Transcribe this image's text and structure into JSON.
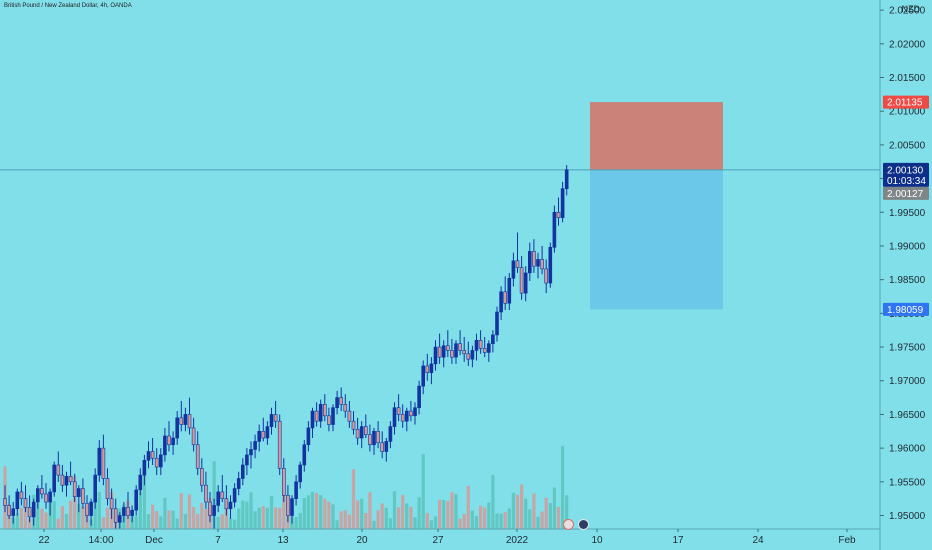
{
  "header": {
    "title": "British Pound / New Zealand Dollar, 4h, OANDA",
    "currency": "NZD"
  },
  "price_axis": {
    "ticks": [
      "2.02500",
      "2.02000",
      "2.01500",
      "2.01000",
      "2.00500",
      "2.00000",
      "1.99500",
      "1.99000",
      "1.98500",
      "1.98000",
      "1.97500",
      "1.97000",
      "1.96500",
      "1.96000",
      "1.95500",
      "1.95000"
    ],
    "labels": {
      "stop": {
        "text": "2.01135",
        "value": 2.01135,
        "color": "#f04a45"
      },
      "last": {
        "text": "2.00130",
        "value": 2.0013,
        "color": "#0d2f8a"
      },
      "countdown": {
        "text": "01:03:34"
      },
      "prev": {
        "text": "2.00127",
        "value": 2.00127,
        "color": "#7f8688"
      },
      "target": {
        "text": "1.98059",
        "value": 1.98059,
        "color": "#2f74f2"
      }
    }
  },
  "time_axis": {
    "ticks": [
      "22",
      "14:00",
      "Dec",
      "7",
      "13",
      "20",
      "27",
      "2022",
      "10",
      "17",
      "24",
      "Feb"
    ]
  },
  "position": {
    "type": "short",
    "entry": 2.0013,
    "stop": 2.01135,
    "target": 1.98059,
    "colors": {
      "risk": "#ca8279",
      "reward": "#6cc8e8"
    }
  },
  "colors": {
    "background": "#80dfe9",
    "candle": "#1233a0",
    "volume_up": "#5ac3bc",
    "volume_down": "#d69a98",
    "price_line": "#4f9fb8"
  },
  "chart_data": {
    "type": "candlestick",
    "title": "British Pound / New Zealand Dollar, 4h, OANDA",
    "symbol": "GBPNZD",
    "interval": "4h",
    "ylim": [
      1.948,
      2.0265
    ],
    "candles_ohlc": [
      [
        1.9525,
        1.9545,
        1.9505,
        1.9515
      ],
      [
        1.9515,
        1.953,
        1.9495,
        1.95
      ],
      [
        1.95,
        1.952,
        1.9488,
        1.951
      ],
      [
        1.951,
        1.954,
        1.95,
        1.9535
      ],
      [
        1.9535,
        1.955,
        1.9515,
        1.9525
      ],
      [
        1.9525,
        1.9545,
        1.9505,
        1.9512
      ],
      [
        1.9512,
        1.953,
        1.949,
        1.9498
      ],
      [
        1.9498,
        1.9525,
        1.9485,
        1.952
      ],
      [
        1.952,
        1.9545,
        1.951,
        1.954
      ],
      [
        1.954,
        1.956,
        1.9525,
        1.9532
      ],
      [
        1.9532,
        1.9548,
        1.951,
        1.952
      ],
      [
        1.952,
        1.954,
        1.95,
        1.9535
      ],
      [
        1.9535,
        1.958,
        1.9528,
        1.9575
      ],
      [
        1.9575,
        1.9595,
        1.955,
        1.956
      ],
      [
        1.956,
        1.9575,
        1.9535,
        1.9545
      ],
      [
        1.9545,
        1.9565,
        1.9528,
        1.9558
      ],
      [
        1.9558,
        1.958,
        1.9545,
        1.955
      ],
      [
        1.955,
        1.9562,
        1.952,
        1.9528
      ],
      [
        1.9528,
        1.9545,
        1.9505,
        1.954
      ],
      [
        1.954,
        1.9555,
        1.951,
        1.9518
      ],
      [
        1.9518,
        1.953,
        1.949,
        1.95
      ],
      [
        1.95,
        1.9525,
        1.9485,
        1.952
      ],
      [
        1.952,
        1.957,
        1.951,
        1.956
      ],
      [
        1.956,
        1.9612,
        1.955,
        1.96
      ],
      [
        1.96,
        1.962,
        1.9545,
        1.9555
      ],
      [
        1.9555,
        1.957,
        1.9515,
        1.9525
      ],
      [
        1.9525,
        1.954,
        1.9495,
        1.951
      ],
      [
        1.951,
        1.9525,
        1.948,
        1.949
      ],
      [
        1.949,
        1.9505,
        1.948,
        1.95
      ],
      [
        1.95,
        1.952,
        1.949,
        1.9512
      ],
      [
        1.9512,
        1.9535,
        1.9495,
        1.95
      ],
      [
        1.95,
        1.9515,
        1.949,
        1.9508
      ],
      [
        1.9508,
        1.9545,
        1.95,
        1.9538
      ],
      [
        1.9538,
        1.957,
        1.953,
        1.956
      ],
      [
        1.956,
        1.959,
        1.9545,
        1.9582
      ],
      [
        1.9582,
        1.961,
        1.957,
        1.9595
      ],
      [
        1.9595,
        1.9615,
        1.9575,
        1.9585
      ],
      [
        1.9585,
        1.96,
        1.956,
        1.9572
      ],
      [
        1.9572,
        1.96,
        1.956,
        1.959
      ],
      [
        1.959,
        1.963,
        1.958,
        1.9618
      ],
      [
        1.9618,
        1.964,
        1.9595,
        1.9605
      ],
      [
        1.9605,
        1.9625,
        1.959,
        1.9615
      ],
      [
        1.9615,
        1.9655,
        1.9605,
        1.9645
      ],
      [
        1.9645,
        1.967,
        1.9625,
        1.9635
      ],
      [
        1.9635,
        1.966,
        1.9625,
        1.965
      ],
      [
        1.965,
        1.9675,
        1.962,
        1.963
      ],
      [
        1.963,
        1.9645,
        1.9595,
        1.9605
      ],
      [
        1.9605,
        1.9625,
        1.956,
        1.957
      ],
      [
        1.957,
        1.9585,
        1.9535,
        1.9545
      ],
      [
        1.9545,
        1.9565,
        1.951,
        1.952
      ],
      [
        1.952,
        1.9535,
        1.949,
        1.95
      ],
      [
        1.95,
        1.9525,
        1.948,
        1.9515
      ],
      [
        1.9515,
        1.9545,
        1.9505,
        1.9535
      ],
      [
        1.9535,
        1.956,
        1.952,
        1.9525
      ],
      [
        1.9525,
        1.9545,
        1.95,
        1.951
      ],
      [
        1.951,
        1.953,
        1.9495,
        1.952
      ],
      [
        1.952,
        1.9548,
        1.9512,
        1.954
      ],
      [
        1.954,
        1.9565,
        1.953,
        1.9555
      ],
      [
        1.9555,
        1.9585,
        1.9545,
        1.9575
      ],
      [
        1.9575,
        1.96,
        1.956,
        1.959
      ],
      [
        1.959,
        1.961,
        1.957,
        1.9598
      ],
      [
        1.9598,
        1.962,
        1.9585,
        1.961
      ],
      [
        1.961,
        1.9635,
        1.9595,
        1.9625
      ],
      [
        1.9625,
        1.9645,
        1.961,
        1.9615
      ],
      [
        1.9615,
        1.964,
        1.9605,
        1.9632
      ],
      [
        1.9632,
        1.966,
        1.962,
        1.965
      ],
      [
        1.965,
        1.967,
        1.963,
        1.964
      ],
      [
        1.964,
        1.965,
        1.956,
        1.957
      ],
      [
        1.957,
        1.9585,
        1.952,
        1.953
      ],
      [
        1.953,
        1.9545,
        1.949,
        1.95
      ],
      [
        1.95,
        1.953,
        1.9488,
        1.9525
      ],
      [
        1.9525,
        1.956,
        1.9515,
        1.955
      ],
      [
        1.955,
        1.958,
        1.954,
        1.9575
      ],
      [
        1.9575,
        1.9612,
        1.9565,
        1.9605
      ],
      [
        1.9605,
        1.964,
        1.9595,
        1.963
      ],
      [
        1.963,
        1.966,
        1.9615,
        1.9655
      ],
      [
        1.9655,
        1.9668,
        1.9632,
        1.964
      ],
      [
        1.964,
        1.9672,
        1.963,
        1.9665
      ],
      [
        1.9665,
        1.968,
        1.964,
        1.9648
      ],
      [
        1.9648,
        1.966,
        1.9625,
        1.9635
      ],
      [
        1.9635,
        1.9665,
        1.9625,
        1.966
      ],
      [
        1.966,
        1.9685,
        1.965,
        1.9675
      ],
      [
        1.9675,
        1.969,
        1.9655,
        1.9665
      ],
      [
        1.9665,
        1.968,
        1.9645,
        1.9655
      ],
      [
        1.9655,
        1.967,
        1.963,
        1.964
      ],
      [
        1.964,
        1.9655,
        1.962,
        1.9628
      ],
      [
        1.9628,
        1.9645,
        1.9605,
        1.9615
      ],
      [
        1.9615,
        1.964,
        1.96,
        1.9632
      ],
      [
        1.9632,
        1.965,
        1.9615,
        1.962
      ],
      [
        1.962,
        1.9635,
        1.9595,
        1.9605
      ],
      [
        1.9605,
        1.963,
        1.959,
        1.9625
      ],
      [
        1.9625,
        1.964,
        1.96,
        1.9608
      ],
      [
        1.9608,
        1.9625,
        1.9585,
        1.9595
      ],
      [
        1.9595,
        1.9615,
        1.958,
        1.961
      ],
      [
        1.961,
        1.964,
        1.96,
        1.9632
      ],
      [
        1.9632,
        1.9668,
        1.962,
        1.966
      ],
      [
        1.966,
        1.968,
        1.964,
        1.965
      ],
      [
        1.965,
        1.9665,
        1.963,
        1.964
      ],
      [
        1.964,
        1.966,
        1.9625,
        1.9655
      ],
      [
        1.9655,
        1.967,
        1.964,
        1.9648
      ],
      [
        1.9648,
        1.9668,
        1.9635,
        1.966
      ],
      [
        1.966,
        1.97,
        1.965,
        1.9692
      ],
      [
        1.9692,
        1.973,
        1.968,
        1.9722
      ],
      [
        1.9722,
        1.974,
        1.97,
        1.9712
      ],
      [
        1.9712,
        1.9735,
        1.9695,
        1.9725
      ],
      [
        1.9725,
        1.976,
        1.9715,
        1.975
      ],
      [
        1.975,
        1.977,
        1.9725,
        1.9735
      ],
      [
        1.9735,
        1.976,
        1.972,
        1.9752
      ],
      [
        1.9752,
        1.9775,
        1.9735,
        1.9745
      ],
      [
        1.9745,
        1.9762,
        1.9725,
        1.9735
      ],
      [
        1.9735,
        1.976,
        1.9725,
        1.9755
      ],
      [
        1.9755,
        1.9775,
        1.9738,
        1.9745
      ],
      [
        1.9745,
        1.9765,
        1.9728,
        1.974
      ],
      [
        1.974,
        1.9758,
        1.9722,
        1.9732
      ],
      [
        1.9732,
        1.9752,
        1.972,
        1.9745
      ],
      [
        1.9745,
        1.977,
        1.973,
        1.976
      ],
      [
        1.976,
        1.9775,
        1.974,
        1.9748
      ],
      [
        1.9748,
        1.9765,
        1.9735,
        1.9742
      ],
      [
        1.9742,
        1.976,
        1.9728,
        1.9755
      ],
      [
        1.9755,
        1.9775,
        1.9742,
        1.9768
      ],
      [
        1.9768,
        1.981,
        1.9758,
        1.9802
      ],
      [
        1.9802,
        1.984,
        1.979,
        1.9832
      ],
      [
        1.9832,
        1.9855,
        1.9805,
        1.9815
      ],
      [
        1.9815,
        1.986,
        1.9805,
        1.9852
      ],
      [
        1.9852,
        1.989,
        1.984,
        1.9878
      ],
      [
        1.9878,
        1.992,
        1.986,
        1.9868
      ],
      [
        1.9868,
        1.9885,
        1.982,
        1.983
      ],
      [
        1.983,
        1.987,
        1.9818,
        1.986
      ],
      [
        1.986,
        1.9905,
        1.9848,
        1.9892
      ],
      [
        1.9892,
        1.991,
        1.986,
        1.987
      ],
      [
        1.987,
        1.989,
        1.9852,
        1.988
      ],
      [
        1.988,
        1.99,
        1.9858,
        1.9866
      ],
      [
        1.9866,
        1.988,
        1.983,
        1.9845
      ],
      [
        1.9845,
        1.9905,
        1.9838,
        1.9898
      ],
      [
        1.9898,
        1.996,
        1.989,
        1.995
      ],
      [
        1.995,
        1.9972,
        1.993,
        1.9942
      ],
      [
        1.9942,
        1.9995,
        1.9935,
        1.9985
      ],
      [
        1.9985,
        2.002,
        1.9975,
        2.0013
      ]
    ]
  }
}
